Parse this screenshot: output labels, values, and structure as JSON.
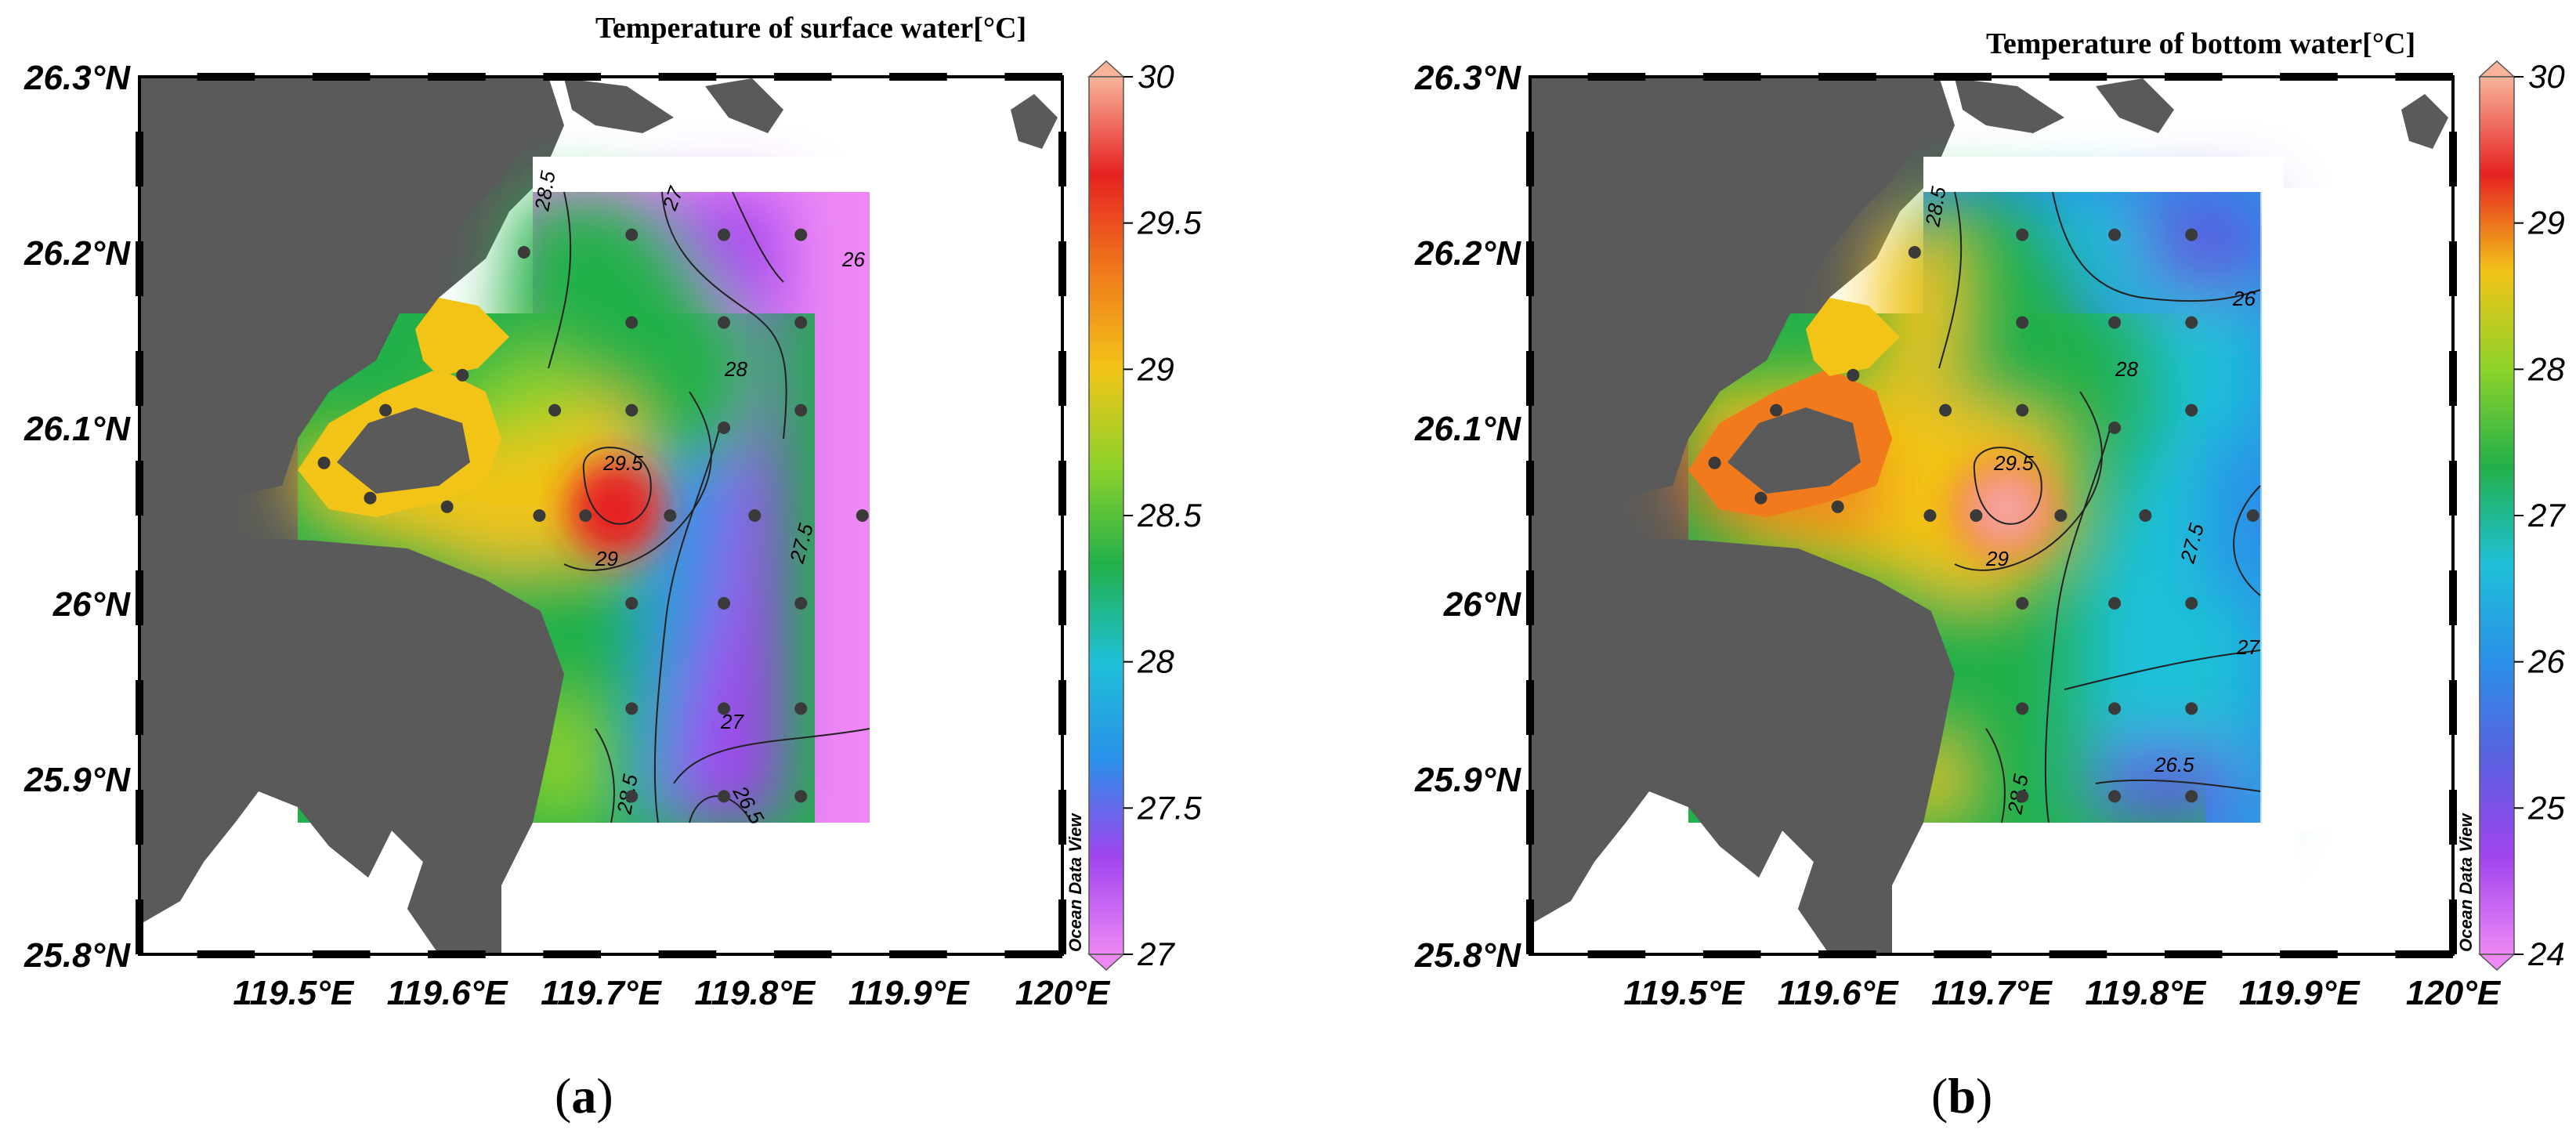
{
  "panels": [
    {
      "id": "a",
      "title": "Temperature of surface water[°C]",
      "caption_open": "(",
      "caption_letter": "a",
      "caption_close": ")",
      "watermark": "Ocean Data View",
      "colorbar": {
        "min": 27,
        "max": 30,
        "ticks": [
          "27",
          "27.5",
          "28",
          "28.5",
          "29",
          "29.5",
          "30"
        ],
        "colors": [
          "#ee88f5",
          "#a044ee",
          "#2a90e8",
          "#1fc0d8",
          "#22b04a",
          "#8dd22a",
          "#f2c418",
          "#f07a1c",
          "#e62222",
          "#f7b49a"
        ]
      },
      "contour_labels": [
        "28.5",
        "27",
        "26",
        "28",
        "29.5",
        "29",
        "27.5",
        "27",
        "26.5",
        "28.5"
      ]
    },
    {
      "id": "b",
      "title": "Temperature of bottom water[°C]",
      "caption_open": "(",
      "caption_letter": "b",
      "caption_close": ")",
      "watermark": "Ocean Data View",
      "colorbar": {
        "min": 24,
        "max": 30,
        "ticks": [
          "24",
          "25",
          "26",
          "27",
          "28",
          "29",
          "30"
        ],
        "colors": [
          "#ee88f5",
          "#a044ee",
          "#5a60e0",
          "#2a90e8",
          "#1fc0d8",
          "#22b04a",
          "#8dd22a",
          "#f2c418",
          "#e62222",
          "#f7b49a"
        ]
      },
      "contour_labels": [
        "28.5",
        "26",
        "28",
        "29.5",
        "29",
        "27.5",
        "27",
        "26.5",
        "28.5"
      ]
    }
  ],
  "axes": {
    "lat_ticks": [
      "26.3°N",
      "26.2°N",
      "26.1°N",
      "26°N",
      "25.9°N",
      "25.8°N"
    ],
    "lon_ticks": [
      "119.5°E",
      "119.6°E",
      "119.7°E",
      "119.8°E",
      "119.9°E",
      "120°E"
    ]
  },
  "colors": {
    "land": "#5a5a5a",
    "sea": "#ffffff",
    "station": "#3a3a3a"
  }
}
